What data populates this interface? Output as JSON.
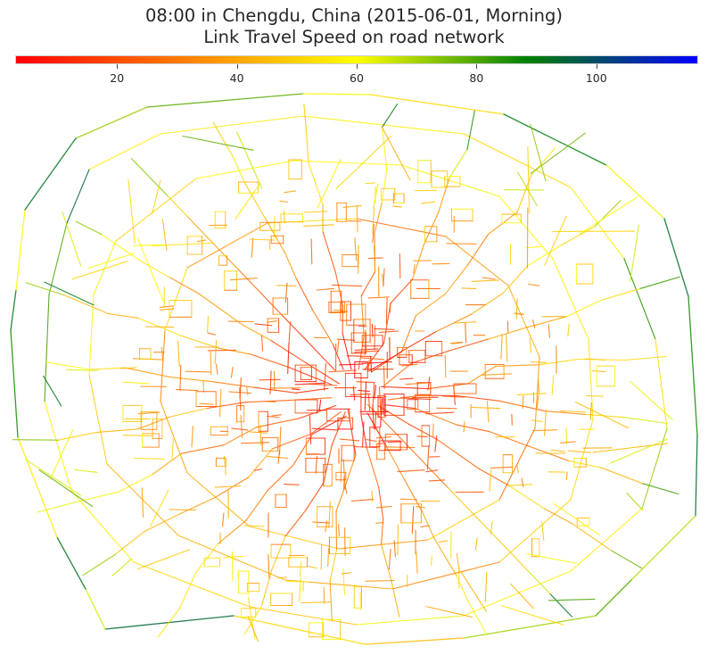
{
  "title": {
    "line1": "08:00 in Chengdu, China (2015-06-01, Morning)",
    "line2": "Link Travel Speed on road network"
  },
  "colorbar": {
    "min": 3,
    "max": 117,
    "ticks": [
      20,
      40,
      60,
      80,
      100
    ],
    "tick_labels": [
      "20",
      "40",
      "60",
      "80",
      "100"
    ],
    "colormap": [
      "#ff0000",
      "#ff8000",
      "#ffff00",
      "#008000",
      "#0000ff"
    ]
  },
  "legend_colors": {
    "red": "#ff0000",
    "orange": "#ff8000",
    "yellow": "#ffff00",
    "green": "#008000",
    "blue": "#0000ff"
  }
}
